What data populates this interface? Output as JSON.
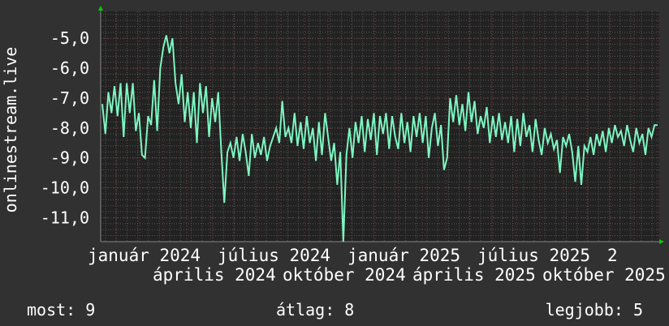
{
  "chart_data": {
    "type": "line",
    "title": "",
    "ylabel": "onlinestream.live",
    "xlabel": "",
    "ylim": [
      -11.8,
      -4.1
    ],
    "y_ticks": [
      "-5,0",
      "-6,0",
      "-7,0",
      "-8,0",
      "-9,0",
      "-10,0",
      "-11,0"
    ],
    "y_tick_values": [
      -5,
      -6,
      -7,
      -8,
      -9,
      -10,
      -11
    ],
    "x_ticks": [
      "január 2024",
      "április 2024",
      "július 2024",
      "október 2024",
      "január 2025",
      "április 2025",
      "július 2025",
      "október 2025",
      "2"
    ],
    "grid": true,
    "colors": {
      "line": "#7df5c0",
      "background": "#313131",
      "plot": "#222222",
      "major_grid": "#8a3a3a",
      "minor_grid": "#555555",
      "axis_arrow": "#00cc00"
    },
    "values": [
      -7.2,
      -8.2,
      -6.8,
      -7.5,
      -6.6,
      -7.6,
      -6.5,
      -8.3,
      -6.5,
      -7.5,
      -6.5,
      -8.1,
      -7.5,
      -8.9,
      -9.0,
      -7.6,
      -7.9,
      -6.4,
      -8.1,
      -6.0,
      -5.3,
      -4.9,
      -5.5,
      -5.0,
      -6.5,
      -7.2,
      -6.2,
      -7.8,
      -6.8,
      -8.0,
      -6.8,
      -8.5,
      -6.5,
      -7.5,
      -6.6,
      -8.3,
      -7.0,
      -7.8,
      -6.8,
      -8.8,
      -10.5,
      -8.8,
      -8.5,
      -9.0,
      -8.3,
      -9.1,
      -8.2,
      -8.8,
      -9.6,
      -8.2,
      -9.0,
      -8.5,
      -8.9,
      -8.3,
      -9.1,
      -8.6,
      -8.3,
      -8.0,
      -8.5,
      -7.1,
      -8.3,
      -8.0,
      -8.5,
      -7.5,
      -8.6,
      -7.8,
      -8.7,
      -7.6,
      -8.5,
      -8.0,
      -9.1,
      -7.8,
      -8.9,
      -7.5,
      -8.3,
      -9.1,
      -8.5,
      -9.9,
      -8.8,
      -11.9,
      -8.9,
      -8.0,
      -9.0,
      -7.8,
      -8.5,
      -7.6,
      -8.8,
      -7.7,
      -8.4,
      -7.5,
      -8.9,
      -7.6,
      -8.2,
      -7.5,
      -8.7,
      -7.6,
      -8.3,
      -8.7,
      -7.5,
      -8.5,
      -7.8,
      -8.8,
      -7.6,
      -8.3,
      -7.5,
      -8.5,
      -7.6,
      -9.0,
      -8.0,
      -7.5,
      -8.6,
      -7.9,
      -9.4,
      -9.0,
      -7.0,
      -7.8,
      -6.9,
      -7.9,
      -7.2,
      -8.1,
      -6.8,
      -7.8,
      -7.1,
      -8.2,
      -7.6,
      -8.0,
      -7.3,
      -8.5,
      -7.6,
      -8.3,
      -7.5,
      -8.4,
      -7.8,
      -8.5,
      -7.6,
      -8.8,
      -7.7,
      -8.6,
      -7.5,
      -8.3,
      -7.9,
      -8.8,
      -7.7,
      -8.4,
      -8.9,
      -8.0,
      -8.5,
      -8.2,
      -8.7,
      -8.4,
      -9.5,
      -8.3,
      -8.6,
      -8.2,
      -8.8,
      -9.8,
      -8.6,
      -9.9,
      -8.6,
      -8.8,
      -8.3,
      -8.9,
      -8.2,
      -8.6,
      -8.1,
      -8.8,
      -8.0,
      -8.5,
      -7.9,
      -8.3,
      -8.1,
      -8.6,
      -7.9,
      -8.4,
      -8.8,
      -8.0,
      -8.5,
      -8.2,
      -8.9,
      -8.0,
      -8.3,
      -7.9,
      -7.9
    ]
  },
  "footer": {
    "most": "most: 9",
    "atlag": "átlag: 8",
    "legjobb": "legjobb: 5"
  }
}
